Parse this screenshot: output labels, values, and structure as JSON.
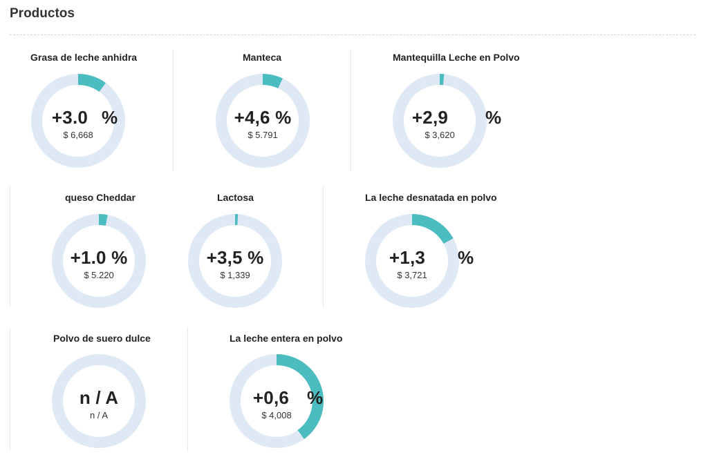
{
  "page": {
    "title": "Productos"
  },
  "colors": {
    "track": "#dfe9f5",
    "accent": "#4bbcbf"
  },
  "products": [
    {
      "name": "Grasa de leche anhidra",
      "change": "+3.0",
      "unit": "%",
      "price": "$ 6,668",
      "fill_fraction": 0.1
    },
    {
      "name": "Manteca",
      "change": "+4,6 %",
      "unit": "",
      "price": "$ 5.791",
      "fill_fraction": 0.07
    },
    {
      "name": "Mantequilla Leche en Polvo",
      "change": "+2,9",
      "unit": "%",
      "price": "$ 3,620",
      "fill_fraction": 0.015
    },
    {
      "name": "queso Cheddar",
      "change": "+1.0 %",
      "unit": "",
      "price": "$ 5.220",
      "fill_fraction": 0.03
    },
    {
      "name": "Lactosa",
      "change": "+3,5 %",
      "unit": "",
      "price": "$ 1,339",
      "fill_fraction": 0.01
    },
    {
      "name": "La leche desnatada en polvo",
      "change": "+1,3",
      "unit": "%",
      "price": "$ 3,721",
      "fill_fraction": 0.17
    },
    {
      "name": "Polvo de suero dulce",
      "change": "n / A",
      "unit": "",
      "price": "n / A",
      "fill_fraction": 0
    },
    {
      "name": "La leche entera en polvo",
      "change": "+0,6",
      "unit": "%",
      "price": "$ 4,008",
      "fill_fraction": 0.4
    }
  ]
}
